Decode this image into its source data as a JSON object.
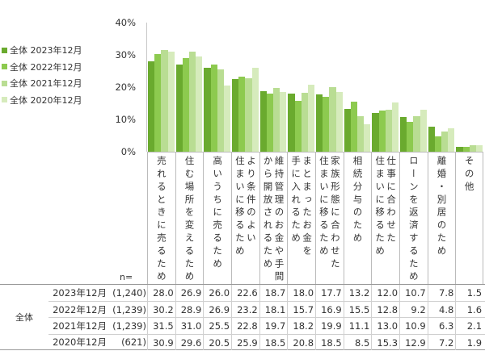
{
  "legend": [
    {
      "label": "全体 2023年12月",
      "color": "#6aaa2e"
    },
    {
      "label": "全体 2022年12月",
      "color": "#8dca4f"
    },
    {
      "label": "全体 2021年12月",
      "color": "#b9dd93"
    },
    {
      "label": "全体 2020年12月",
      "color": "#d6ebbc"
    }
  ],
  "y_axis": {
    "ticks": [
      "40%",
      "30%",
      "20%",
      "10%",
      "0%"
    ]
  },
  "n_label": "n=",
  "table": {
    "group_label": "全体",
    "rows": [
      {
        "period": "2023年12月",
        "n": "(1,240)",
        "values": [
          "28.0",
          "26.9",
          "26.0",
          "22.6",
          "18.7",
          "18.0",
          "17.7",
          "13.2",
          "12.0",
          "10.7",
          "7.8",
          "1.5"
        ]
      },
      {
        "period": "2022年12月",
        "n": "(1,239)",
        "values": [
          "30.2",
          "28.9",
          "26.9",
          "23.2",
          "18.1",
          "15.7",
          "16.9",
          "15.5",
          "12.8",
          "9.2",
          "4.8",
          "1.6"
        ]
      },
      {
        "period": "2021年12月",
        "n": "(1,239)",
        "values": [
          "31.5",
          "31.0",
          "25.5",
          "22.8",
          "19.7",
          "18.2",
          "19.9",
          "11.1",
          "13.0",
          "10.9",
          "6.3",
          "2.1"
        ]
      },
      {
        "period": "2020年12月",
        "n": "(621)",
        "values": [
          "30.9",
          "29.6",
          "20.5",
          "25.9",
          "18.5",
          "20.8",
          "18.5",
          "8.5",
          "15.3",
          "12.9",
          "7.2",
          "1.9"
        ]
      }
    ]
  },
  "chart_data": {
    "type": "bar",
    "title": "",
    "xlabel": "",
    "ylabel": "",
    "ylim": [
      0,
      40
    ],
    "yticks": [
      "0%",
      "10%",
      "20%",
      "30%",
      "40%"
    ],
    "grid": false,
    "legend_position": "left",
    "categories": [
      [
        "売れるときに売るため"
      ],
      [
        "住む場所を変えるため"
      ],
      [
        "高いうちに売るため"
      ],
      [
        "より条件のよい",
        "住まいに移るため"
      ],
      [
        "維持管理のお金や手間",
        "から開放されるため"
      ],
      [
        "まとまったお金を",
        "手に入れるため"
      ],
      [
        "家族形態に合わせた",
        "住まいに移るため"
      ],
      [
        "相続分与のため"
      ],
      [
        "仕事に合わせた",
        "住まいに移るため"
      ],
      [
        "ローンを返済するため"
      ],
      [
        "離婚・別居のため"
      ],
      [
        "その他"
      ]
    ],
    "series": [
      {
        "name": "全体 2023年12月",
        "n": "(1,240)",
        "color": "#6aaa2e",
        "values": [
          28.0,
          26.9,
          26.0,
          22.6,
          18.7,
          18.0,
          17.7,
          13.2,
          12.0,
          10.7,
          7.8,
          1.5
        ]
      },
      {
        "name": "全体 2022年12月",
        "n": "(1,239)",
        "color": "#8dca4f",
        "values": [
          30.2,
          28.9,
          26.9,
          23.2,
          18.1,
          15.7,
          16.9,
          15.5,
          12.8,
          9.2,
          4.8,
          1.6
        ]
      },
      {
        "name": "全体 2021年12月",
        "n": "(1,239)",
        "color": "#b9dd93",
        "values": [
          31.5,
          31.0,
          25.5,
          22.8,
          19.7,
          18.2,
          19.9,
          11.1,
          13.0,
          10.9,
          6.3,
          2.1
        ]
      },
      {
        "name": "全体 2020年12月",
        "n": "(621)",
        "color": "#d6ebbc",
        "values": [
          30.9,
          29.6,
          20.5,
          25.9,
          18.5,
          20.8,
          18.5,
          8.5,
          15.3,
          12.9,
          7.2,
          1.9
        ]
      }
    ]
  }
}
